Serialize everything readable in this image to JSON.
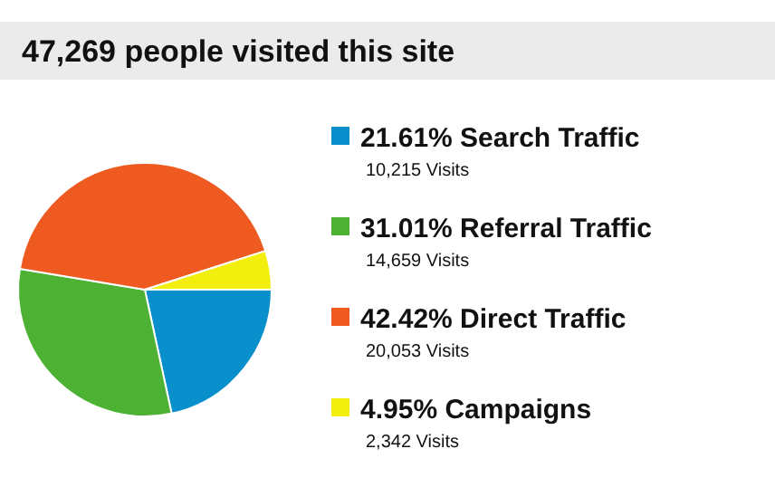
{
  "chart_data": {
    "type": "pie",
    "title": "47,269 people visited this site",
    "categories": [
      "Search Traffic",
      "Referral Traffic",
      "Direct Traffic",
      "Campaigns"
    ],
    "values": [
      21.61,
      31.01,
      42.42,
      4.95
    ],
    "value_labels": [
      "21.61%",
      "31.01%",
      "42.42%",
      "4.95%"
    ],
    "colors": [
      "#0a8fcd",
      "#4db233",
      "#ef5a21",
      "#f2ef0f"
    ],
    "annotations": [
      "10,215 Visits",
      "14,659 Visits",
      "20,053 Visits",
      "2,342 Visits"
    ],
    "legend": "right"
  }
}
